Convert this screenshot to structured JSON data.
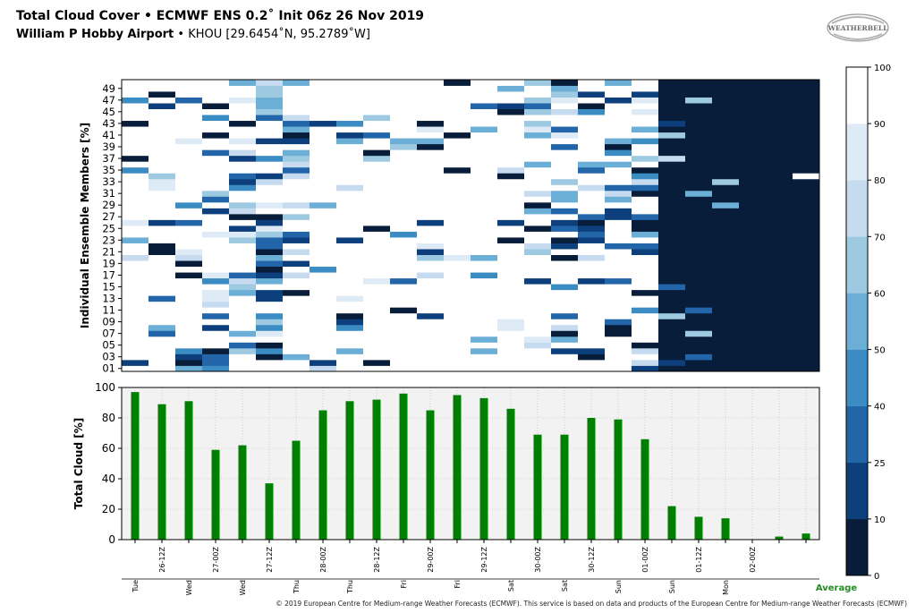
{
  "header": {
    "title_line1": "Total Cloud Cover  •  ECMWF ENS 0.2˚ Init 06z 26 Nov 2019",
    "station_name": "William P Hobby Airport",
    "station_meta": " • KHOU [29.6454˚N, 95.2789˚W]"
  },
  "logo": {
    "text": "WEATHERBELL",
    "icon": "weatherbell-swirl-logo"
  },
  "footer": {
    "copyright": "© 2019 European Centre for Medium-range Weather Forecasts (ECMWF). This service is based on data and products of the European Centre for Medium-range Weather Forecasts (ECMWF)",
    "average_label": "Average",
    "average_color": "#228B22"
  },
  "colors": {
    "bar": "#008000",
    "bar_bg": "#f2f2f2",
    "grid": "#b8b8b8",
    "scale": [
      "#081d3a",
      "#0d3f7d",
      "#2266a9",
      "#3c8cc4",
      "#6baed6",
      "#9ecae1",
      "#c6dbef",
      "#deebf7",
      "#ffffff"
    ]
  },
  "chart_data": [
    {
      "type": "heatmap",
      "ylabel": "Individual Ensemble Members [%]",
      "ytick_labels": [
        "49",
        "47",
        "45",
        "43",
        "41",
        "39",
        "37",
        "35",
        "33",
        "31",
        "29",
        "27",
        "25",
        "23",
        "21",
        "19",
        "17",
        "15",
        "13",
        "11",
        "09",
        "07",
        "05",
        "03",
        "01"
      ],
      "n_rows": 50,
      "n_cols": 26,
      "colorbar": {
        "ticks": [
          0,
          10,
          25,
          40,
          50,
          60,
          70,
          80,
          90,
          100
        ],
        "bin_edges": [
          0,
          10,
          25,
          40,
          50,
          60,
          70,
          80,
          90,
          100
        ]
      },
      "note": "Each row = ensemble member (01 bottom to 50 top), each column = 6-hour forecast step; cell color = total cloud cover percent"
    },
    {
      "type": "bar",
      "ylabel": "Total Cloud [%]",
      "ylim": [
        0,
        100
      ],
      "yticks": [
        0,
        20,
        40,
        60,
        80,
        100
      ],
      "grid": true,
      "values": [
        97,
        89,
        91,
        59,
        62,
        37,
        65,
        85,
        91,
        92,
        96,
        85,
        95,
        93,
        86,
        69,
        69,
        80,
        79,
        66,
        22,
        15,
        14,
        0,
        2,
        4
      ],
      "x_tick_labels": [
        {
          "top": "",
          "bottom": "Tue"
        },
        {
          "top": "26-12Z",
          "bottom": ""
        },
        {
          "top": "",
          "bottom": "Wed"
        },
        {
          "top": "27-00Z",
          "bottom": ""
        },
        {
          "top": "",
          "bottom": "Wed"
        },
        {
          "top": "27-12Z",
          "bottom": ""
        },
        {
          "top": "",
          "bottom": "Thu"
        },
        {
          "top": "28-00Z",
          "bottom": ""
        },
        {
          "top": "",
          "bottom": "Thu"
        },
        {
          "top": "28-12Z",
          "bottom": ""
        },
        {
          "top": "",
          "bottom": "Fri"
        },
        {
          "top": "29-00Z",
          "bottom": ""
        },
        {
          "top": "",
          "bottom": "Fri"
        },
        {
          "top": "29-12Z",
          "bottom": ""
        },
        {
          "top": "",
          "bottom": "Sat"
        },
        {
          "top": "30-00Z",
          "bottom": ""
        },
        {
          "top": "",
          "bottom": "Sat"
        },
        {
          "top": "30-12Z",
          "bottom": ""
        },
        {
          "top": "",
          "bottom": "Sun"
        },
        {
          "top": "01-00Z",
          "bottom": ""
        },
        {
          "top": "",
          "bottom": "Sun"
        },
        {
          "top": "01-12Z",
          "bottom": ""
        },
        {
          "top": "",
          "bottom": "Mon"
        },
        {
          "top": "02-00Z",
          "bottom": ""
        },
        {
          "top": "",
          "bottom": ""
        },
        {
          "top": "",
          "bottom": ""
        }
      ]
    }
  ]
}
